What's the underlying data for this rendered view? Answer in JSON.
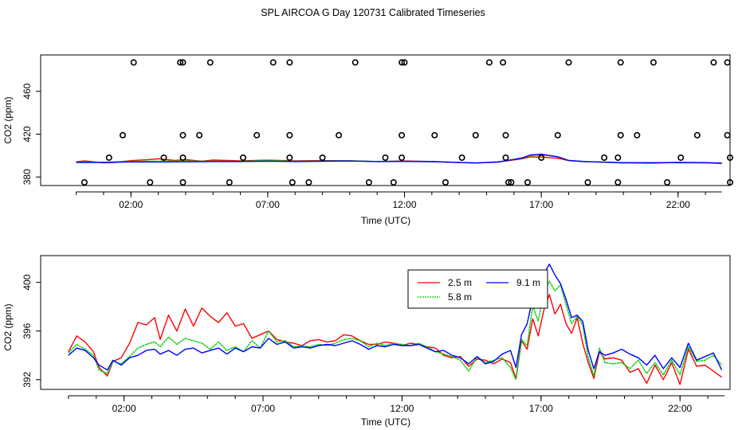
{
  "page": {
    "title": "SPL AIRCOA G  Day 120731  Calibrated Timeseries"
  },
  "chart_data": [
    {
      "type": "scatter",
      "xlabel": "Time (UTC)",
      "ylabel": "CO2 (ppm)",
      "xlim": [
        -1.3,
        23.9
      ],
      "ylim": [
        372,
        494
      ],
      "x_ticks": [
        2,
        7,
        12,
        17,
        22
      ],
      "x_tick_labels": [
        "02:00",
        "07:00",
        "12:00",
        "17:00",
        "22:00"
      ],
      "y_ticks": [
        380,
        420,
        460
      ],
      "y_tick_labels": [
        "380",
        "420",
        "460"
      ],
      "calibration_points": {
        "x": [
          0.3,
          1.2,
          1.7,
          2.1,
          2.7,
          3.2,
          3.8,
          3.9,
          3.9,
          3.9,
          3.9,
          4.5,
          4.9,
          5.6,
          6.1,
          6.6,
          7.2,
          7.8,
          7.8,
          7.8,
          7.9,
          8.5,
          9.0,
          9.6,
          10.2,
          10.7,
          11.3,
          11.6,
          11.9,
          11.9,
          11.9,
          12.0,
          13.1,
          13.5,
          14.1,
          14.6,
          15.1,
          15.6,
          15.7,
          15.7,
          15.8,
          15.9,
          16.5,
          17.0,
          17.6,
          18.0,
          18.7,
          19.3,
          19.8,
          19.8,
          19.9,
          19.9,
          20.5,
          21.1,
          21.6,
          22.1,
          22.7,
          23.3,
          23.8,
          23.8,
          23.9,
          23.9
        ],
        "y": [
          375,
          398,
          419,
          487,
          375,
          398,
          487,
          375,
          398,
          419,
          487,
          419,
          487,
          375,
          398,
          419,
          487,
          487,
          419,
          398,
          375,
          375,
          398,
          419,
          487,
          375,
          398,
          375,
          398,
          419,
          487,
          487,
          419,
          375,
          398,
          419,
          487,
          487,
          419,
          398,
          375,
          375,
          375,
          398,
          419,
          487,
          375,
          398,
          375,
          398,
          419,
          487,
          419,
          487,
          375,
          398,
          419,
          487,
          487,
          419,
          398,
          375
        ]
      },
      "series": [
        {
          "name": "2.5 m",
          "color": "#ff0000",
          "x": [
            0.0,
            0.3,
            1.0,
            1.4,
            2.0,
            2.6,
            3.0,
            3.6,
            4.0,
            4.6,
            5.0,
            6.0,
            7.0,
            8.0,
            9.0,
            10.0,
            11.0,
            12.0,
            13.0,
            14.0,
            14.6,
            15.4,
            15.8,
            16.3,
            16.6,
            17.0,
            17.6,
            18.0,
            18.6,
            19.0,
            20.0,
            21.0,
            22.0,
            23.0,
            23.6
          ],
          "y": [
            394.2,
            395.0,
            393.3,
            393.6,
            395.3,
            396.1,
            397.0,
            395.4,
            396.2,
            394.8,
            395.8,
            395.1,
            395.7,
            395.1,
            395.3,
            395.1,
            394.5,
            395.0,
            394.5,
            393.6,
            393.0,
            394.2,
            395.2,
            397.0,
            398.7,
            398.6,
            397.5,
            395.3,
            394.3,
            394.0,
            393.2,
            392.9,
            393.6,
            393.1,
            392.6
          ]
        },
        {
          "name": "5.8 m",
          "color": "#00cc00",
          "x": [
            0.0,
            1.0,
            2.0,
            3.0,
            4.0,
            5.0,
            6.0,
            7.0,
            8.0,
            9.0,
            10.0,
            11.0,
            12.0,
            13.0,
            14.0,
            14.6,
            15.4,
            16.3,
            16.6,
            17.0,
            17.6,
            18.0,
            18.6,
            19.0,
            20.0,
            21.0,
            22.0,
            23.0,
            23.6
          ],
          "y": [
            393.9,
            393.8,
            394.6,
            394.8,
            395.0,
            394.7,
            394.6,
            395.5,
            394.8,
            394.9,
            395.1,
            394.5,
            394.7,
            394.3,
            393.6,
            393.0,
            393.9,
            397.5,
            399.8,
            400.6,
            398.9,
            395.3,
            394.3,
            394.0,
            393.0,
            393.5,
            393.2,
            393.2,
            392.8
          ]
        },
        {
          "name": "9.1 m",
          "color": "#0000ff",
          "x": [
            0.0,
            1.0,
            2.0,
            3.0,
            4.0,
            5.0,
            6.0,
            7.0,
            8.0,
            9.0,
            10.0,
            11.0,
            12.0,
            13.0,
            14.0,
            14.6,
            15.4,
            16.3,
            16.6,
            17.0,
            17.6,
            18.0,
            18.6,
            19.0,
            20.0,
            21.0,
            22.0,
            23.0,
            23.6
          ],
          "y": [
            393.6,
            393.5,
            394.1,
            394.0,
            394.2,
            394.4,
            394.4,
            394.8,
            394.4,
            394.7,
            394.9,
            394.4,
            394.5,
            394.3,
            393.5,
            393.1,
            393.8,
            397.8,
            400.6,
            401.2,
            398.9,
            395.4,
            394.4,
            394.1,
            393.4,
            393.3,
            393.6,
            393.4,
            393.0
          ]
        }
      ]
    },
    {
      "type": "line",
      "xlabel": "Time (UTC)",
      "ylabel": "CO2 (ppm)",
      "xlim": [
        -1.0,
        23.8
      ],
      "ylim": [
        391.2,
        402.2
      ],
      "x_ticks": [
        2,
        7,
        12,
        17,
        22
      ],
      "x_tick_labels": [
        "02:00",
        "07:00",
        "12:00",
        "17:00",
        "22:00"
      ],
      "y_ticks": [
        392,
        396,
        400
      ],
      "y_tick_labels": [
        "392",
        "396",
        "400"
      ],
      "legend": {
        "position": "top-right",
        "entries": [
          "2.5 m",
          "5.8 m",
          "9.1 m"
        ]
      },
      "series": [
        {
          "name": "2.5 m",
          "color": "#ff0000",
          "x": [
            0.0,
            0.3,
            0.6,
            0.9,
            1.1,
            1.4,
            1.6,
            1.9,
            2.2,
            2.5,
            2.8,
            3.1,
            3.3,
            3.6,
            3.9,
            4.2,
            4.5,
            4.8,
            5.1,
            5.4,
            5.7,
            6.0,
            6.3,
            6.6,
            6.9,
            7.2,
            7.5,
            7.8,
            8.1,
            8.4,
            8.7,
            9.0,
            9.3,
            9.6,
            9.9,
            10.2,
            10.5,
            10.8,
            11.1,
            11.4,
            11.7,
            12.0,
            12.3,
            12.6,
            12.9,
            13.2,
            13.5,
            13.8,
            14.1,
            14.4,
            14.7,
            15.0,
            15.3,
            15.6,
            15.9,
            16.1,
            16.3,
            16.5,
            16.7,
            16.9,
            17.1,
            17.3,
            17.5,
            17.7,
            17.9,
            18.1,
            18.3,
            18.5,
            18.7,
            18.9,
            19.1,
            19.3,
            19.6,
            19.9,
            20.2,
            20.5,
            20.8,
            21.1,
            21.4,
            21.7,
            22.0,
            22.3,
            22.6,
            22.9,
            23.2,
            23.5
          ],
          "y": [
            394.3,
            395.6,
            395.1,
            394.3,
            393.0,
            392.3,
            393.5,
            393.8,
            395.0,
            396.7,
            396.5,
            397.1,
            395.3,
            397.3,
            396.0,
            397.8,
            396.4,
            397.9,
            397.2,
            396.7,
            397.5,
            396.4,
            396.6,
            395.4,
            395.7,
            396.0,
            395.3,
            395.1,
            395.0,
            394.8,
            395.2,
            395.3,
            395.1,
            395.2,
            395.7,
            395.6,
            395.2,
            394.9,
            394.9,
            395.1,
            395.0,
            394.8,
            395.0,
            394.9,
            394.7,
            394.6,
            394.0,
            393.8,
            393.9,
            393.1,
            393.7,
            393.6,
            393.3,
            393.7,
            393.4,
            392.1,
            395.2,
            394.5,
            397.0,
            395.6,
            397.7,
            399.0,
            397.4,
            398.2,
            396.6,
            395.8,
            397.1,
            395.0,
            393.4,
            392.1,
            394.3,
            393.7,
            393.8,
            393.6,
            392.6,
            392.9,
            391.7,
            393.2,
            392.0,
            393.4,
            391.6,
            394.5,
            393.1,
            393.2,
            392.7,
            392.2
          ]
        },
        {
          "name": "5.8 m",
          "color": "#00cc00",
          "x": [
            0.0,
            0.3,
            0.6,
            0.9,
            1.1,
            1.4,
            1.6,
            1.9,
            2.2,
            2.5,
            2.8,
            3.1,
            3.3,
            3.6,
            3.9,
            4.2,
            4.5,
            4.8,
            5.1,
            5.4,
            5.7,
            6.0,
            6.3,
            6.6,
            6.9,
            7.2,
            7.5,
            7.8,
            8.1,
            8.4,
            8.7,
            9.0,
            9.3,
            9.6,
            9.9,
            10.2,
            10.5,
            10.8,
            11.1,
            11.4,
            11.7,
            12.0,
            12.3,
            12.6,
            12.9,
            13.2,
            13.5,
            13.8,
            14.1,
            14.4,
            14.7,
            15.0,
            15.3,
            15.6,
            15.9,
            16.1,
            16.3,
            16.5,
            16.7,
            16.9,
            17.1,
            17.3,
            17.5,
            17.7,
            17.9,
            18.1,
            18.3,
            18.5,
            18.7,
            18.9,
            19.1,
            19.3,
            19.6,
            19.9,
            20.2,
            20.5,
            20.8,
            21.1,
            21.4,
            21.7,
            22.0,
            22.3,
            22.6,
            22.9,
            23.2,
            23.5
          ],
          "y": [
            394.2,
            394.9,
            394.5,
            394.0,
            392.8,
            392.5,
            393.5,
            393.3,
            393.9,
            394.6,
            394.9,
            395.1,
            394.7,
            395.5,
            394.9,
            395.4,
            395.2,
            395.0,
            394.5,
            395.1,
            394.4,
            394.7,
            394.3,
            395.2,
            394.6,
            396.0,
            395.1,
            395.2,
            394.7,
            394.8,
            394.7,
            394.9,
            394.8,
            395.0,
            395.3,
            395.4,
            395.2,
            394.7,
            395.0,
            394.8,
            395.0,
            394.9,
            394.8,
            395.0,
            394.7,
            394.3,
            394.1,
            393.9,
            393.6,
            392.7,
            393.9,
            393.4,
            393.6,
            393.8,
            393.0,
            392.0,
            395.3,
            394.8,
            398.1,
            396.8,
            399.2,
            400.1,
            399.3,
            399.8,
            398.2,
            396.6,
            397.2,
            396.5,
            393.8,
            392.3,
            394.6,
            393.4,
            393.3,
            393.4,
            392.9,
            393.6,
            392.5,
            393.4,
            392.4,
            393.6,
            392.4,
            394.7,
            393.5,
            393.6,
            394.0,
            393.2
          ]
        },
        {
          "name": "9.1 m",
          "color": "#0000ff",
          "x": [
            0.0,
            0.3,
            0.6,
            0.9,
            1.1,
            1.4,
            1.6,
            1.9,
            2.2,
            2.5,
            2.8,
            3.1,
            3.3,
            3.6,
            3.9,
            4.2,
            4.5,
            4.8,
            5.1,
            5.4,
            5.7,
            6.0,
            6.3,
            6.6,
            6.9,
            7.2,
            7.5,
            7.8,
            8.1,
            8.4,
            8.7,
            9.0,
            9.3,
            9.6,
            9.9,
            10.2,
            10.5,
            10.8,
            11.1,
            11.4,
            11.7,
            12.0,
            12.3,
            12.6,
            12.9,
            13.2,
            13.5,
            13.8,
            14.1,
            14.4,
            14.7,
            15.0,
            15.3,
            15.6,
            15.9,
            16.1,
            16.3,
            16.5,
            16.7,
            16.9,
            17.1,
            17.3,
            17.5,
            17.7,
            17.9,
            18.1,
            18.3,
            18.5,
            18.7,
            18.9,
            19.1,
            19.3,
            19.6,
            19.9,
            20.2,
            20.5,
            20.8,
            21.1,
            21.4,
            21.7,
            22.0,
            22.3,
            22.6,
            22.9,
            23.2,
            23.5
          ],
          "y": [
            394.0,
            394.6,
            394.4,
            393.8,
            393.2,
            392.8,
            393.6,
            393.2,
            393.8,
            394.0,
            394.4,
            394.5,
            394.1,
            394.4,
            394.0,
            394.5,
            394.6,
            394.2,
            394.4,
            394.6,
            394.1,
            394.6,
            394.3,
            394.7,
            394.6,
            395.4,
            394.9,
            395.1,
            394.6,
            394.7,
            394.6,
            394.8,
            394.9,
            394.8,
            395.0,
            395.2,
            394.9,
            394.5,
            394.8,
            394.7,
            394.9,
            394.8,
            394.8,
            394.9,
            394.6,
            394.3,
            394.4,
            394.0,
            393.8,
            393.3,
            393.9,
            393.3,
            393.5,
            394.1,
            394.4,
            393.0,
            395.7,
            396.6,
            398.7,
            400.0,
            400.7,
            401.5,
            400.6,
            399.9,
            398.6,
            397.1,
            397.3,
            396.8,
            394.4,
            392.9,
            394.3,
            394.0,
            394.2,
            394.5,
            394.1,
            393.8,
            393.2,
            394.0,
            392.9,
            393.8,
            393.0,
            395.0,
            393.6,
            393.9,
            394.2,
            392.8
          ]
        }
      ]
    }
  ]
}
